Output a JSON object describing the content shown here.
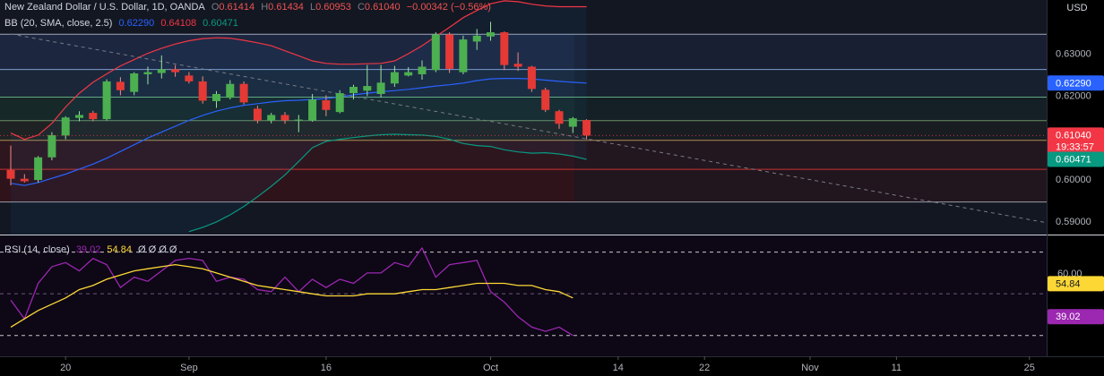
{
  "colors": {
    "background": "#000000",
    "bull": "#26a69a",
    "bullCandle": "#4caf50",
    "bear": "#e53935",
    "bbBasis": "#2962ff",
    "bbUpper": "#f23645",
    "bbLower": "#089981",
    "rsi": "#9c27b0",
    "rsiMa": "#fdd835",
    "price": "#f23645",
    "trend": "#787b86"
  },
  "header": {
    "symbol": "New Zealand Dollar / U.S. Dollar, 1D, OANDA",
    "o_label": "O",
    "o_value": "0.61414",
    "h_label": "H",
    "h_value": "0.61434",
    "l_label": "L",
    "l_value": "0.60953",
    "c_label": "C",
    "c_value": "0.61040",
    "change": "−0.00342 (−0.56%)"
  },
  "bb_legend": {
    "label": "BB (20, SMA, close, 2.5)",
    "basis": "0.62290",
    "upper": "0.64108",
    "lower": "0.60471"
  },
  "rsi_legend": {
    "label": "RSI (14, close)",
    "rsi": "39.02",
    "ma": "54.84",
    "extra": "Ø Ø Ø Ø"
  },
  "currency_label": "USD",
  "price_axis": {
    "ticks": [
      "0.63000",
      "0.62000",
      "0.61000",
      "0.60000",
      "0.59000"
    ],
    "badges": {
      "basis": "0.62290",
      "last": "0.61040",
      "countdown": "19:33:57",
      "lower": "0.60471"
    }
  },
  "rsi_axis": {
    "ticks": [
      "60.00"
    ],
    "badges": {
      "ma": "54.84",
      "rsi": "39.02"
    }
  },
  "time_axis": {
    "labels": [
      "20",
      "Sep",
      "16",
      "Oct",
      "14",
      "22",
      "Nov",
      "11",
      "25"
    ]
  },
  "chart_data": [
    {
      "type": "candlestick",
      "title": "New Zealand Dollar / U.S. Dollar, 1D, OANDA",
      "ylim": [
        0.5868,
        0.6427
      ],
      "candles": [
        {
          "o": 0.6022,
          "h": 0.608,
          "l": 0.5985,
          "c": 0.6001
        },
        {
          "o": 0.6001,
          "h": 0.6012,
          "l": 0.5992,
          "c": 0.5995
        },
        {
          "o": 0.5998,
          "h": 0.6055,
          "l": 0.5992,
          "c": 0.6052
        },
        {
          "o": 0.6052,
          "h": 0.6112,
          "l": 0.6045,
          "c": 0.6105
        },
        {
          "o": 0.6104,
          "h": 0.615,
          "l": 0.6095,
          "c": 0.6147
        },
        {
          "o": 0.6146,
          "h": 0.6162,
          "l": 0.6138,
          "c": 0.6153
        },
        {
          "o": 0.6158,
          "h": 0.6163,
          "l": 0.6138,
          "c": 0.6143
        },
        {
          "o": 0.6143,
          "h": 0.6238,
          "l": 0.614,
          "c": 0.6233
        },
        {
          "o": 0.6232,
          "h": 0.6243,
          "l": 0.62,
          "c": 0.6212
        },
        {
          "o": 0.6208,
          "h": 0.6255,
          "l": 0.62,
          "c": 0.6252
        },
        {
          "o": 0.625,
          "h": 0.6268,
          "l": 0.6226,
          "c": 0.6255
        },
        {
          "o": 0.6253,
          "h": 0.6295,
          "l": 0.624,
          "c": 0.6262
        },
        {
          "o": 0.6262,
          "h": 0.6272,
          "l": 0.6244,
          "c": 0.6255
        },
        {
          "o": 0.6247,
          "h": 0.6255,
          "l": 0.6228,
          "c": 0.6233
        },
        {
          "o": 0.6233,
          "h": 0.6245,
          "l": 0.618,
          "c": 0.6187
        },
        {
          "o": 0.6186,
          "h": 0.621,
          "l": 0.617,
          "c": 0.6203
        },
        {
          "o": 0.6194,
          "h": 0.6236,
          "l": 0.619,
          "c": 0.6227
        },
        {
          "o": 0.6227,
          "h": 0.6233,
          "l": 0.6178,
          "c": 0.6183
        },
        {
          "o": 0.6168,
          "h": 0.6175,
          "l": 0.6133,
          "c": 0.614
        },
        {
          "o": 0.614,
          "h": 0.6158,
          "l": 0.6133,
          "c": 0.6153
        },
        {
          "o": 0.6153,
          "h": 0.616,
          "l": 0.6132,
          "c": 0.614
        },
        {
          "o": 0.614,
          "h": 0.6153,
          "l": 0.6112,
          "c": 0.6142
        },
        {
          "o": 0.614,
          "h": 0.6203,
          "l": 0.6137,
          "c": 0.619
        },
        {
          "o": 0.6188,
          "h": 0.62,
          "l": 0.615,
          "c": 0.6165
        },
        {
          "o": 0.616,
          "h": 0.6212,
          "l": 0.6157,
          "c": 0.6205
        },
        {
          "o": 0.6205,
          "h": 0.6225,
          "l": 0.619,
          "c": 0.622
        },
        {
          "o": 0.6211,
          "h": 0.6272,
          "l": 0.6198,
          "c": 0.6222
        },
        {
          "o": 0.6203,
          "h": 0.6272,
          "l": 0.6195,
          "c": 0.623
        },
        {
          "o": 0.6228,
          "h": 0.627,
          "l": 0.622,
          "c": 0.6255
        },
        {
          "o": 0.6247,
          "h": 0.6267,
          "l": 0.6245,
          "c": 0.6255
        },
        {
          "o": 0.625,
          "h": 0.6283,
          "l": 0.6237,
          "c": 0.6268
        },
        {
          "o": 0.626,
          "h": 0.635,
          "l": 0.6255,
          "c": 0.6345
        },
        {
          "o": 0.6345,
          "h": 0.635,
          "l": 0.6253,
          "c": 0.6263
        },
        {
          "o": 0.6255,
          "h": 0.6342,
          "l": 0.625,
          "c": 0.6333
        },
        {
          "o": 0.6328,
          "h": 0.6358,
          "l": 0.6308,
          "c": 0.6342
        },
        {
          "o": 0.634,
          "h": 0.6375,
          "l": 0.633,
          "c": 0.635
        },
        {
          "o": 0.635,
          "h": 0.6352,
          "l": 0.626,
          "c": 0.6272
        },
        {
          "o": 0.6275,
          "h": 0.6302,
          "l": 0.6258,
          "c": 0.6268
        },
        {
          "o": 0.6268,
          "h": 0.627,
          "l": 0.6208,
          "c": 0.6215
        },
        {
          "o": 0.6213,
          "h": 0.6218,
          "l": 0.616,
          "c": 0.6165
        },
        {
          "o": 0.6162,
          "h": 0.6165,
          "l": 0.612,
          "c": 0.6132
        },
        {
          "o": 0.6125,
          "h": 0.6148,
          "l": 0.611,
          "c": 0.6145
        },
        {
          "o": 0.6141,
          "h": 0.6143,
          "l": 0.6095,
          "c": 0.6104
        }
      ],
      "series": [
        {
          "name": "Basis",
          "values": [
            0.599,
            0.5985,
            0.5992,
            0.6002,
            0.6012,
            0.6024,
            0.6036,
            0.605,
            0.6066,
            0.6082,
            0.6098,
            0.6112,
            0.6126,
            0.614,
            0.6152,
            0.6162,
            0.617,
            0.6176,
            0.618,
            0.6184,
            0.6187,
            0.6188,
            0.619,
            0.6192,
            0.6196,
            0.6201,
            0.6205,
            0.6208,
            0.6211,
            0.6214,
            0.6218,
            0.6222,
            0.6225,
            0.6229,
            0.6235,
            0.6239,
            0.624,
            0.624,
            0.6239,
            0.6236,
            0.6233,
            0.6231,
            0.6229
          ]
        },
        {
          "name": "Upper",
          "values": [
            0.611,
            0.6095,
            0.6105,
            0.6133,
            0.6172,
            0.6205,
            0.6231,
            0.6251,
            0.627,
            0.6285,
            0.63,
            0.6312,
            0.6322,
            0.633,
            0.6335,
            0.6337,
            0.6336,
            0.6331,
            0.6325,
            0.6318,
            0.6306,
            0.6294,
            0.6282,
            0.6276,
            0.6274,
            0.6274,
            0.6275,
            0.6276,
            0.6282,
            0.6299,
            0.6318,
            0.634,
            0.6362,
            0.6385,
            0.6402,
            0.6418,
            0.6425,
            0.6423,
            0.6417,
            0.6413,
            0.6411,
            0.6411,
            0.6411
          ]
        },
        {
          "name": "Lower",
          "values": [
            null,
            null,
            null,
            null,
            null,
            null,
            null,
            null,
            null,
            null,
            null,
            null,
            null,
            0.5875,
            0.5885,
            0.5898,
            0.5915,
            0.5935,
            0.5958,
            0.5983,
            0.601,
            0.6042,
            0.6075,
            0.609,
            0.6095,
            0.6099,
            0.6103,
            0.6106,
            0.6107,
            0.6106,
            0.6105,
            0.6102,
            0.6095,
            0.6085,
            0.608,
            0.6078,
            0.607,
            0.6065,
            0.6062,
            0.6063,
            0.606,
            0.6055,
            0.6047
          ]
        }
      ],
      "horizontal_levels": [
        0.63455,
        0.62615,
        0.61955,
        0.61395,
        0.60925,
        0.60235,
        0.59455
      ],
      "trendline": {
        "x": [
          0,
          43
        ],
        "y": [
          0.6346,
          0.609
        ],
        "extends_right": true
      }
    },
    {
      "type": "line",
      "title": "RSI (14, close)",
      "ylim": [
        20,
        78
      ],
      "levels": [
        70,
        50,
        30
      ],
      "series": [
        {
          "name": "RSI",
          "values": [
            47,
            38,
            55,
            63,
            65,
            61,
            67,
            64,
            53,
            58,
            56,
            61,
            66,
            67,
            66,
            56,
            58,
            57,
            52,
            51,
            58,
            51,
            57,
            53,
            57,
            55,
            60,
            60,
            65,
            63,
            72,
            58,
            64,
            65,
            66,
            51,
            46,
            39,
            34,
            32,
            34,
            30
          ]
        },
        {
          "name": "MA",
          "values": [
            34,
            38,
            42,
            45,
            48,
            52,
            54,
            57,
            59,
            61,
            62,
            63,
            64,
            63,
            62,
            60,
            58,
            56,
            54,
            53,
            52,
            51,
            50,
            49,
            49,
            49,
            50,
            50,
            50,
            51,
            52,
            52,
            53,
            54,
            55,
            55,
            55,
            54,
            54,
            52,
            51,
            48
          ]
        }
      ]
    }
  ]
}
